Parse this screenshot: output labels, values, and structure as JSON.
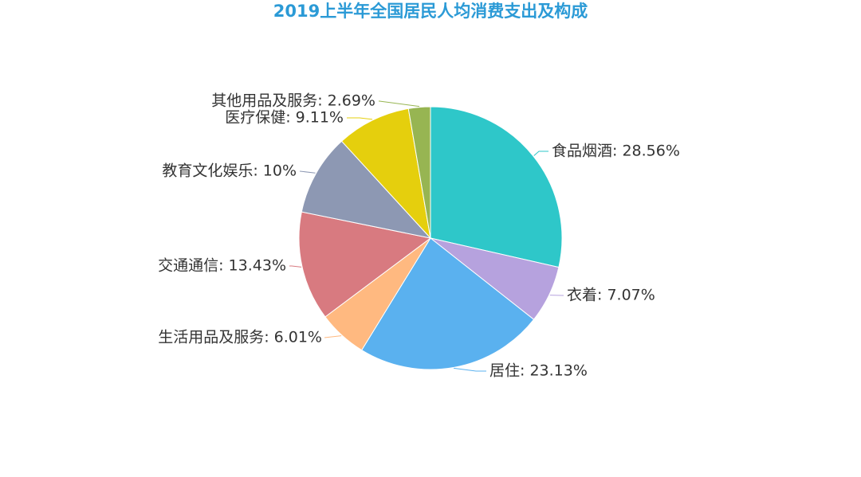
{
  "chart_data": {
    "type": "pie",
    "title": "2019上半年全国居民人均消费支出及构成",
    "slices": [
      {
        "label": "食品烟酒",
        "value": 28.56,
        "display": "食品烟酒: 28.56%",
        "color": "#2ec7c9"
      },
      {
        "label": "衣着",
        "value": 7.07,
        "display": "衣着: 7.07%",
        "color": "#b6a2de"
      },
      {
        "label": "居住",
        "value": 23.13,
        "display": "居住: 23.13%",
        "color": "#5ab1ef"
      },
      {
        "label": "生活用品及服务",
        "value": 6.01,
        "display": "生活用品及服务: 6.01%",
        "color": "#ffb980"
      },
      {
        "label": "交通通信",
        "value": 13.43,
        "display": "交通通信: 13.43%",
        "color": "#d87a80"
      },
      {
        "label": "教育文化娱乐",
        "value": 10,
        "display": "教育文化娱乐: 10%",
        "color": "#8d98b3"
      },
      {
        "label": "医疗保健",
        "value": 9.11,
        "display": "医疗保健: 9.11%",
        "color": "#e5cf0d"
      },
      {
        "label": "其他用品及服务",
        "value": 2.69,
        "display": "其他用品及服务: 2.69%",
        "color": "#97b552"
      }
    ]
  }
}
